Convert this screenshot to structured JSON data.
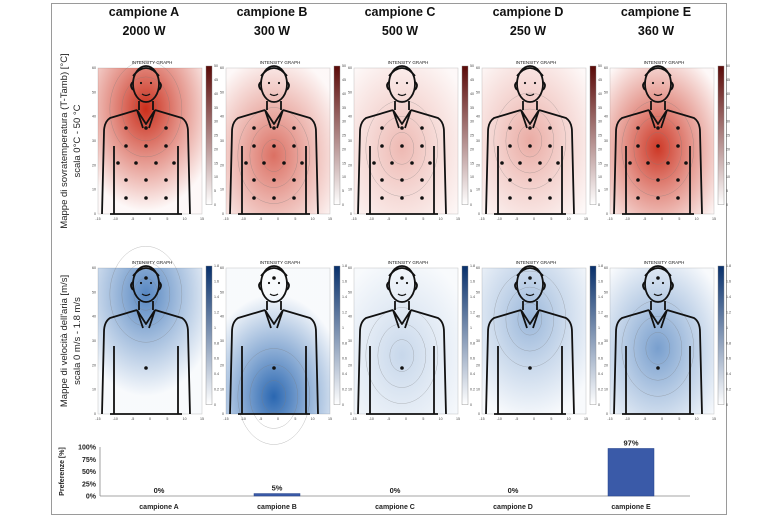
{
  "samples": [
    {
      "name": "campione A",
      "power": "2000 W"
    },
    {
      "name": "campione B",
      "power": "300 W"
    },
    {
      "name": "campione C",
      "power": "500 W"
    },
    {
      "name": "campione D",
      "power": "250 W"
    },
    {
      "name": "campione E",
      "power": "360 W"
    }
  ],
  "panel_caption": "INTENSITY GRAPH",
  "row_temperature": {
    "title": "Mappe di sovratemperatura (T-Tamb) [°C]",
    "scale": "scala 0°C - 50 °C",
    "colorbar_ticks": [
      "0",
      "5",
      "10",
      "15",
      "20",
      "25",
      "30",
      "35",
      "40",
      "45",
      "50"
    ],
    "intensity": [
      0.95,
      0.45,
      0.12,
      0.18,
      0.7
    ]
  },
  "row_velocity": {
    "title": "Mappe di velocità dell'aria [m/s]",
    "scale": "scala 0 m/s - 1.8 m/s",
    "colorbar_ticks": [
      "0",
      "0.2",
      "0.4",
      "0.6",
      "0.8",
      "1",
      "1.2",
      "1.4",
      "1.6",
      "1.8"
    ],
    "intensity": [
      0.55,
      0.75,
      0.05,
      0.25,
      0.4
    ]
  },
  "axis_ticks_x": [
    "-15",
    "-10",
    "-5",
    "0",
    "5",
    "10",
    "15"
  ],
  "axis_ticks_y": [
    "0",
    "10",
    "20",
    "30",
    "40",
    "50",
    "60"
  ],
  "colors": {
    "temp_hot": "#c8230f",
    "vel_hot": "#1f5fad",
    "bar": "#3a5aa8"
  },
  "chart_data": {
    "type": "bar",
    "categories": [
      "campione A",
      "campione B",
      "campione C",
      "campione D",
      "campione E"
    ],
    "values": [
      0,
      5,
      0,
      0,
      97
    ],
    "data_labels": [
      "0%",
      "5%",
      "0%",
      "0%",
      "97%"
    ],
    "ylabel": "Preferenze [%]",
    "yticks": [
      "0%",
      "25%",
      "50%",
      "75%",
      "100%"
    ],
    "ylim": [
      0,
      100
    ]
  }
}
